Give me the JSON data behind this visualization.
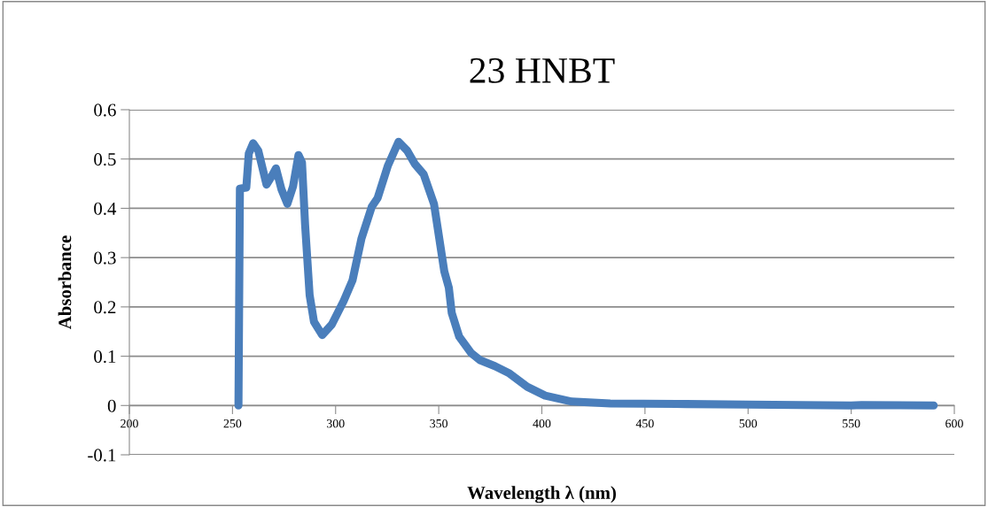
{
  "chart_data": {
    "type": "line",
    "title": "23 HNBT",
    "xlabel": "Wavelength λ (nm)",
    "ylabel": "Absorbance",
    "xlim": [
      200,
      600
    ],
    "xticks": [
      200,
      250,
      300,
      350,
      400,
      450,
      500,
      550,
      600
    ],
    "ylim": [
      -0.1,
      0.6
    ],
    "yticks": [
      -0.1,
      0,
      0.1,
      0.2,
      0.3,
      0.4,
      0.5,
      0.6
    ],
    "grid": "y",
    "legend": false,
    "marker": "none",
    "line_style": "solid",
    "series": [
      {
        "color": "#4a7ebb",
        "x": [
          252.9,
          253.6,
          256.7,
          257.9,
          260.0,
          262.5,
          266.5,
          268.7,
          271.1,
          273.7,
          276.6,
          279.4,
          282.0,
          283.7,
          285.2,
          287.4,
          289.5,
          293.5,
          298.1,
          303.9,
          308.2,
          312.5,
          317.5,
          320.4,
          325.4,
          330.5,
          334.7,
          338.4,
          342.7,
          347.7,
          352.7,
          354.9,
          356.3,
          359.9,
          365.6,
          370.0,
          377.2,
          384.3,
          392.9,
          401.6,
          414.5,
          433.2,
          470.0,
          500.0,
          550.0,
          555.0,
          590.0
        ],
        "values": [
          0.0,
          0.44,
          0.442,
          0.511,
          0.532,
          0.517,
          0.448,
          0.463,
          0.481,
          0.439,
          0.409,
          0.445,
          0.508,
          0.493,
          0.367,
          0.224,
          0.17,
          0.143,
          0.164,
          0.212,
          0.254,
          0.338,
          0.403,
          0.421,
          0.487,
          0.535,
          0.517,
          0.49,
          0.469,
          0.409,
          0.272,
          0.239,
          0.188,
          0.14,
          0.107,
          0.092,
          0.08,
          0.065,
          0.038,
          0.02,
          0.008,
          0.004,
          0.003,
          0.002,
          0.0,
          0.001,
          0.0
        ]
      }
    ]
  }
}
